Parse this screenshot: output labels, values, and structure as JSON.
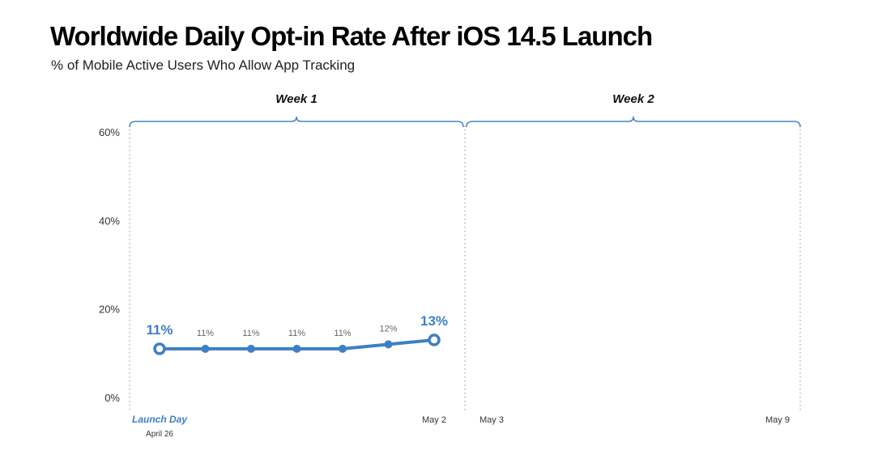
{
  "title": "Worldwide Daily Opt-in Rate After iOS 14.5 Launch",
  "subtitle": "% of Mobile Active Users Who Allow App Tracking",
  "colors": {
    "series": "#3f7fc4",
    "bracket": "#4a86c8",
    "axis_dots": "#aaaaaa",
    "text": "#111111",
    "data_label_gray": "#666666"
  },
  "chart_data": {
    "type": "line",
    "title": "Worldwide Daily Opt-in Rate After iOS 14.5 Launch",
    "subtitle": "% of Mobile Active Users Who Allow App Tracking",
    "ylim": [
      0,
      60
    ],
    "y_ticks": [
      "0%",
      "20%",
      "40%",
      "60%"
    ],
    "y_tick_values": [
      0,
      20,
      40,
      60
    ],
    "grid": false,
    "groups": [
      {
        "label": "Week 1",
        "start_day": 0,
        "end_day": 6
      },
      {
        "label": "Week 2",
        "start_day": 7,
        "end_day": 13
      }
    ],
    "x_tick_labels": [
      {
        "day": 0,
        "label": "Launch Day",
        "sublabel": "April 26",
        "accent": true
      },
      {
        "day": 6,
        "label": "May 2"
      },
      {
        "day": 7,
        "label": "May 3"
      },
      {
        "day": 13,
        "label": "May 9"
      }
    ],
    "series": [
      {
        "values": [
          11,
          11,
          11,
          11,
          11,
          12,
          13
        ],
        "days": [
          0,
          1,
          2,
          3,
          4,
          5,
          6
        ],
        "labels": [
          "11%",
          "11%",
          "11%",
          "11%",
          "11%",
          "12%",
          "13%"
        ],
        "highlight_first_last": true
      }
    ]
  }
}
